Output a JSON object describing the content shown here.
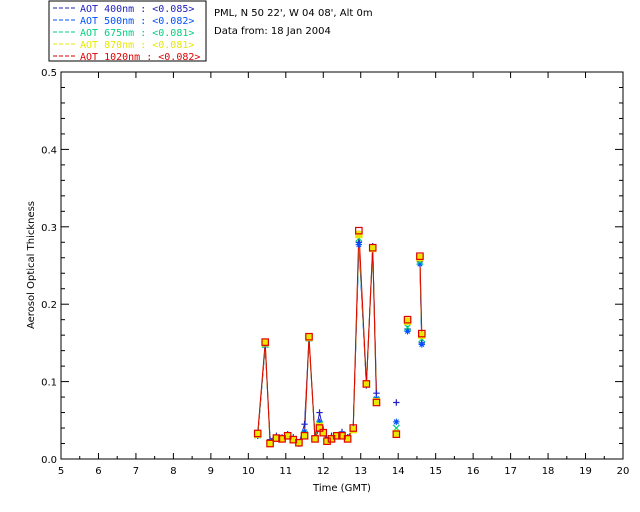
{
  "chart_data": {
    "type": "line",
    "title_lines": [
      "PML, N 50 22', W 04 08', Alt 0m",
      "Data from: 18 Jan 2004"
    ],
    "xlabel": "Time (GMT)",
    "ylabel": "Aerosol Optical Thickness",
    "xlim": [
      5,
      20
    ],
    "ylim": [
      0,
      0.5
    ],
    "xticks": [
      "5",
      "6",
      "7",
      "8",
      "9",
      "10",
      "11",
      "12",
      "13",
      "14",
      "15",
      "16",
      "17",
      "18",
      "19",
      "20"
    ],
    "yticks": [
      "0.0",
      "0.1",
      "0.2",
      "0.3",
      "0.4",
      "0.5"
    ],
    "grid": false,
    "legend_position": "top-left-outside",
    "series": [
      {
        "name": "AOT  400nm : <0.085>",
        "color": "#2020c0",
        "marker": "plus",
        "x": [
          10.25,
          10.45,
          10.58,
          10.75,
          10.9,
          11.05,
          11.2,
          11.35,
          11.5,
          11.62,
          11.78,
          11.9,
          12.0,
          12.1,
          12.22,
          12.36,
          12.5,
          12.65,
          12.8,
          12.95,
          13.15,
          13.32,
          13.42,
          13.6,
          13.95,
          14.25,
          14.58,
          14.63
        ],
        "y": [
          0.03,
          0.146,
          0.025,
          0.03,
          0.028,
          0.032,
          0.028,
          0.02,
          0.045,
          0.155,
          0.028,
          0.06,
          0.038,
          0.025,
          0.03,
          0.03,
          0.035,
          0.028,
          0.04,
          0.28,
          0.095,
          0.275,
          0.085,
          null,
          0.073,
          0.168,
          0.255,
          0.15
        ]
      },
      {
        "name": "AOT  500nm : <0.082>",
        "color": "#0050ff",
        "marker": "star",
        "x": [
          10.25,
          10.45,
          10.58,
          10.75,
          10.9,
          11.05,
          11.2,
          11.35,
          11.5,
          11.62,
          11.78,
          11.9,
          12.0,
          12.1,
          12.22,
          12.36,
          12.5,
          12.65,
          12.8,
          12.95,
          13.15,
          13.32,
          13.42,
          13.6,
          13.95,
          14.25,
          14.58,
          14.63
        ],
        "y": [
          0.03,
          0.147,
          0.022,
          0.028,
          0.026,
          0.03,
          0.026,
          0.02,
          0.035,
          0.155,
          0.026,
          0.048,
          0.035,
          0.024,
          0.027,
          0.03,
          0.032,
          0.027,
          0.038,
          0.277,
          0.097,
          0.272,
          0.078,
          null,
          0.048,
          0.165,
          0.252,
          0.148
        ]
      },
      {
        "name": "AOT  675nm : <0.081>",
        "color": "#00d080",
        "marker": "cross",
        "x": [
          10.25,
          10.45,
          10.58,
          10.75,
          10.9,
          11.05,
          11.2,
          11.35,
          11.5,
          11.62,
          11.78,
          11.9,
          12.0,
          12.1,
          12.22,
          12.36,
          12.5,
          12.65,
          12.8,
          12.95,
          13.15,
          13.32,
          13.42,
          13.6,
          13.95,
          14.25,
          14.58,
          14.63
        ],
        "y": [
          0.031,
          0.148,
          0.021,
          0.027,
          0.026,
          0.03,
          0.025,
          0.021,
          0.032,
          0.156,
          0.026,
          0.045,
          0.034,
          0.023,
          0.026,
          0.03,
          0.031,
          0.026,
          0.038,
          0.285,
          0.097,
          0.272,
          0.076,
          null,
          0.04,
          0.17,
          0.255,
          0.155
        ]
      },
      {
        "name": "AOT  870nm : <0.081>",
        "color": "#e8e800",
        "marker": "diamond",
        "x": [
          10.25,
          10.45,
          10.58,
          10.75,
          10.9,
          11.05,
          11.2,
          11.35,
          11.5,
          11.62,
          11.78,
          11.9,
          12.0,
          12.1,
          12.22,
          12.36,
          12.5,
          12.65,
          12.8,
          12.95,
          13.15,
          13.32,
          13.42,
          13.6,
          13.95,
          14.25,
          14.58,
          14.63
        ],
        "y": [
          0.032,
          0.15,
          0.02,
          0.027,
          0.026,
          0.03,
          0.025,
          0.021,
          0.03,
          0.157,
          0.026,
          0.042,
          0.034,
          0.023,
          0.026,
          0.03,
          0.03,
          0.026,
          0.038,
          0.29,
          0.097,
          0.272,
          0.074,
          null,
          0.033,
          0.178,
          0.26,
          0.16
        ]
      },
      {
        "name": "AOT 1020nm : <0.082>",
        "color": "#e00000",
        "marker": "square",
        "x": [
          10.25,
          10.45,
          10.58,
          10.75,
          10.9,
          11.05,
          11.2,
          11.35,
          11.5,
          11.62,
          11.78,
          11.9,
          12.0,
          12.1,
          12.22,
          12.36,
          12.5,
          12.65,
          12.8,
          12.95,
          13.15,
          13.32,
          13.42,
          13.6,
          13.95,
          14.25,
          14.58,
          14.63
        ],
        "y": [
          0.033,
          0.151,
          0.02,
          0.027,
          0.026,
          0.03,
          0.025,
          0.021,
          0.03,
          0.158,
          0.026,
          0.04,
          0.034,
          0.023,
          0.026,
          0.03,
          0.03,
          0.026,
          0.04,
          0.295,
          0.097,
          0.273,
          0.073,
          null,
          0.032,
          0.18,
          0.262,
          0.162
        ]
      }
    ]
  }
}
